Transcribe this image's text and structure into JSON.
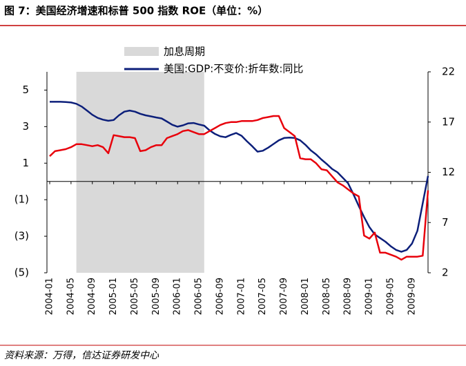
{
  "chart_data": {
    "type": "line",
    "title": "图 7：美国经济增速和标普 500 指数 ROE（单位：%）",
    "source": "资料来源：万得，信达证券研发中心",
    "categories": [
      "2004-01",
      null,
      null,
      null,
      "2004-05",
      null,
      null,
      null,
      "2004-09",
      null,
      null,
      null,
      "2005-01",
      null,
      null,
      null,
      "2005-05",
      null,
      null,
      null,
      "2005-09",
      null,
      null,
      null,
      "2006-01",
      null,
      null,
      null,
      "2006-05",
      null,
      null,
      null,
      "2006-09",
      null,
      null,
      null,
      "2007-01",
      null,
      null,
      null,
      "2007-05",
      null,
      null,
      null,
      "2007-09",
      null,
      null,
      null,
      "2008-01",
      null,
      null,
      null,
      "2008-05",
      null,
      null,
      null,
      "2008-09",
      null,
      null,
      null,
      "2009-01",
      null,
      null,
      null,
      "2009-05",
      null,
      null,
      null,
      "2009-09",
      null,
      null,
      null
    ],
    "shade": {
      "name": "加息周期",
      "start": 5,
      "end": 29,
      "color": "#d9d9d9"
    },
    "series": [
      {
        "name": "美国:GDP:不变价:折年数:同比",
        "color": "#0c1f7a",
        "values": [
          4.36,
          4.36,
          4.36,
          4.35,
          4.32,
          4.25,
          4.1,
          3.88,
          3.65,
          3.48,
          3.38,
          3.32,
          3.36,
          3.62,
          3.82,
          3.88,
          3.82,
          3.7,
          3.62,
          3.56,
          3.5,
          3.45,
          3.28,
          3.1,
          3.0,
          3.07,
          3.18,
          3.2,
          3.12,
          3.05,
          2.8,
          2.6,
          2.47,
          2.42,
          2.55,
          2.65,
          2.5,
          2.2,
          1.93,
          1.63,
          1.68,
          1.85,
          2.05,
          2.25,
          2.38,
          2.4,
          2.38,
          2.25,
          2.0,
          1.7,
          1.48,
          1.2,
          0.95,
          0.68,
          0.5,
          0.2,
          -0.1,
          -0.7,
          -1.35,
          -1.95,
          -2.5,
          -2.9,
          -3.1,
          -3.3,
          -3.55,
          -3.75,
          -3.85,
          -3.75,
          -3.4,
          -2.7,
          -1.2,
          0.3
        ]
      },
      {
        "color": "#e8000b",
        "axis": "y2",
        "values": [
          13.6,
          14.1,
          14.2,
          14.3,
          14.5,
          14.8,
          14.8,
          14.7,
          14.6,
          14.7,
          14.5,
          13.9,
          15.7,
          15.6,
          15.5,
          15.5,
          15.4,
          14.1,
          14.2,
          14.5,
          14.7,
          14.7,
          15.4,
          15.6,
          15.8,
          16.1,
          16.2,
          16.0,
          15.8,
          15.8,
          16.1,
          16.4,
          16.7,
          16.9,
          17.0,
          17.0,
          17.1,
          17.1,
          17.1,
          17.2,
          17.4,
          17.5,
          17.6,
          17.6,
          16.4,
          16.0,
          15.6,
          13.4,
          13.3,
          13.3,
          12.9,
          12.3,
          12.2,
          11.6,
          11.0,
          10.7,
          10.3,
          9.9,
          9.6,
          5.7,
          5.4,
          6.0,
          4.0,
          4.0,
          3.8,
          3.6,
          3.3,
          3.6,
          3.6,
          3.6,
          3.7,
          10.2
        ]
      }
    ],
    "ylim": [
      -5,
      6
    ],
    "yticks": [
      5,
      3,
      1,
      {
        "value": -1,
        "label": "(1)"
      },
      {
        "value": -3,
        "label": "(3)"
      },
      {
        "value": -5,
        "label": "(5)"
      }
    ],
    "negative_tick_color": "#e8000b",
    "y2lim": [
      2,
      22
    ],
    "y2ticks": [
      22,
      17,
      12,
      7,
      2
    ]
  }
}
